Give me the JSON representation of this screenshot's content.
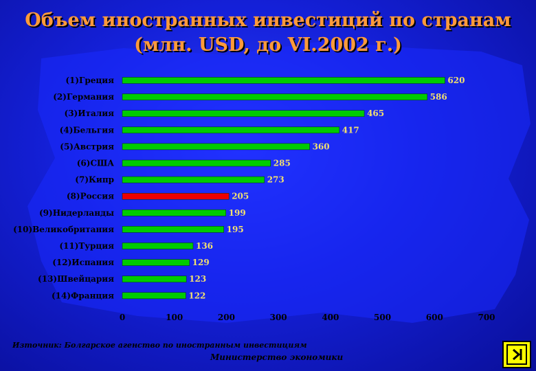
{
  "title_line1": "Объем иностранных инвестиций по странам",
  "title_line2": "(млн. USD, до VI.2002 г.)",
  "source": "Източник: Болгарское агенство по иностранным инвестициям",
  "ministry": "Министерство экономики",
  "nav_icon": "end-show-icon",
  "colors": {
    "bar": "#00cc00",
    "highlight": "#ee0000",
    "labels": "#000000",
    "values": "#f2e070"
  },
  "chart_data": {
    "type": "bar",
    "orientation": "horizontal",
    "categories": [
      "(1)Греция",
      "(2)Германия",
      "(3)Италия",
      "(4)Бельгия",
      "(5)Австрия",
      "(6)США",
      "(7)Кипр",
      "(8)Россия",
      "(9)Нидерланды",
      "(10)Великобритания",
      "(11)Турция",
      "(12)Испания",
      "(13)Швейцария",
      "(14)Франция"
    ],
    "values": [
      620,
      586,
      465,
      417,
      360,
      285,
      273,
      205,
      199,
      195,
      136,
      129,
      123,
      122
    ],
    "highlight_category": "(8)Россия",
    "xlim": [
      0,
      700
    ],
    "xticks": [
      0,
      100,
      200,
      300,
      400,
      500,
      600,
      700
    ],
    "grid": false
  }
}
